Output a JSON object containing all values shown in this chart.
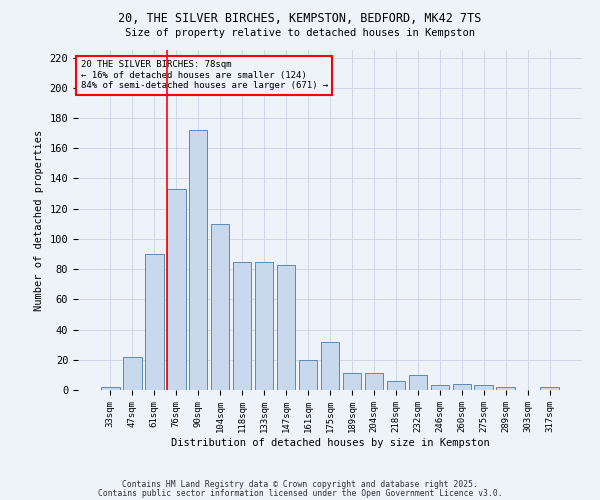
{
  "title1": "20, THE SILVER BIRCHES, KEMPSTON, BEDFORD, MK42 7TS",
  "title2": "Size of property relative to detached houses in Kempston",
  "xlabel": "Distribution of detached houses by size in Kempston",
  "ylabel": "Number of detached properties",
  "categories": [
    "33sqm",
    "47sqm",
    "61sqm",
    "76sqm",
    "90sqm",
    "104sqm",
    "118sqm",
    "133sqm",
    "147sqm",
    "161sqm",
    "175sqm",
    "189sqm",
    "204sqm",
    "218sqm",
    "232sqm",
    "246sqm",
    "260sqm",
    "275sqm",
    "289sqm",
    "303sqm",
    "317sqm"
  ],
  "values": [
    2,
    22,
    90,
    133,
    172,
    110,
    85,
    85,
    83,
    20,
    32,
    11,
    11,
    6,
    10,
    3,
    4,
    3,
    2,
    0,
    2
  ],
  "bar_color": "#c9d9ed",
  "bar_edge_color": "#5b8ab5",
  "grid_color": "#d0d8e8",
  "bg_color": "#eef2f9",
  "vline_color": "red",
  "vline_x": 3.0,
  "annotation_text": "20 THE SILVER BIRCHES: 78sqm\n← 16% of detached houses are smaller (124)\n84% of semi-detached houses are larger (671) →",
  "ylim": [
    0,
    225
  ],
  "yticks": [
    0,
    20,
    40,
    60,
    80,
    100,
    120,
    140,
    160,
    180,
    200,
    220
  ],
  "footnote1": "Contains HM Land Registry data © Crown copyright and database right 2025.",
  "footnote2": "Contains public sector information licensed under the Open Government Licence v3.0."
}
